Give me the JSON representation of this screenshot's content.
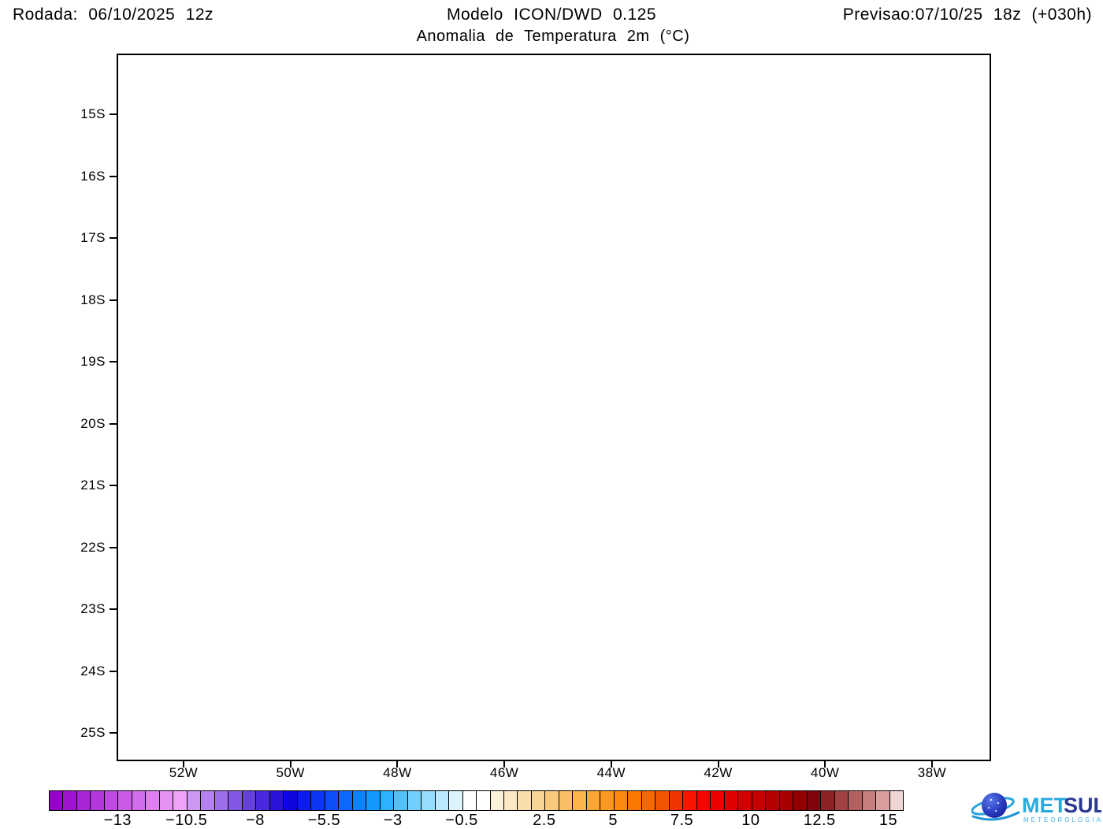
{
  "header": {
    "run": "Rodada: 06/10/2025 12z",
    "model": "Modelo ICON/DWD 0.125",
    "variable": "Anomalia de Temperatura 2m (°C)",
    "forecast": "Previsao:07/10/25 18z (+030h)"
  },
  "map": {
    "lat_labels": [
      "15S",
      "16S",
      "17S",
      "18S",
      "19S",
      "20S",
      "21S",
      "22S",
      "23S",
      "24S",
      "25S"
    ],
    "lon_labels": [
      "52W",
      "50W",
      "48W",
      "46W",
      "44W",
      "42W",
      "40W",
      "38W"
    ]
  },
  "colorbar": {
    "value_start": -15.5,
    "value_step": 0.5,
    "tick_labels": [
      "−13",
      "−10.5",
      "−8",
      "−5.5",
      "−3",
      "−0.5",
      "2.5",
      "5",
      "7.5",
      "10",
      "12.5",
      "15"
    ],
    "tick_indices": [
      5,
      10,
      15,
      20,
      25,
      30,
      36,
      41,
      46,
      51,
      56,
      61
    ],
    "palette": [
      "#9602C8",
      "#A013CF",
      "#AA25D6",
      "#B437DC",
      "#BF49E2",
      "#C95BE8",
      "#D36DEC",
      "#DD7FF1",
      "#E791F5",
      "#EFA3F8",
      "#CE97F4",
      "#B583F0",
      "#9C6EEB",
      "#8257E5",
      "#6840E0",
      "#4A28DB",
      "#2B12D8",
      "#1005DE",
      "#0D1DE9",
      "#0C36F2",
      "#0C4FF9",
      "#0D68FD",
      "#0E81FE",
      "#129AFF",
      "#2EB1FF",
      "#50C0FF",
      "#72CFFF",
      "#95DDFF",
      "#B8E9FF",
      "#DAF3FF",
      "#FFFFFF",
      "#FFFFFF",
      "#FCF1DA",
      "#FBE8C4",
      "#F9DEAC",
      "#F9D494",
      "#FACA7C",
      "#FBBF63",
      "#FCB34B",
      "#FDA634",
      "#FC981F",
      "#FB890E",
      "#F97804",
      "#F66700",
      "#F25500",
      "#F03400",
      "#FB1400",
      "#F80400",
      "#EE0000",
      "#E10000",
      "#D40000",
      "#C60000",
      "#B70000",
      "#A60000",
      "#930002",
      "#7F040E",
      "#8F2226",
      "#A14242",
      "#B46060",
      "#C67E7E",
      "#D99D9D",
      "#F0D5D5"
    ]
  },
  "logo": {
    "met": "MET",
    "sul": "SUL",
    "tagline": "METEOROLOGIA"
  }
}
